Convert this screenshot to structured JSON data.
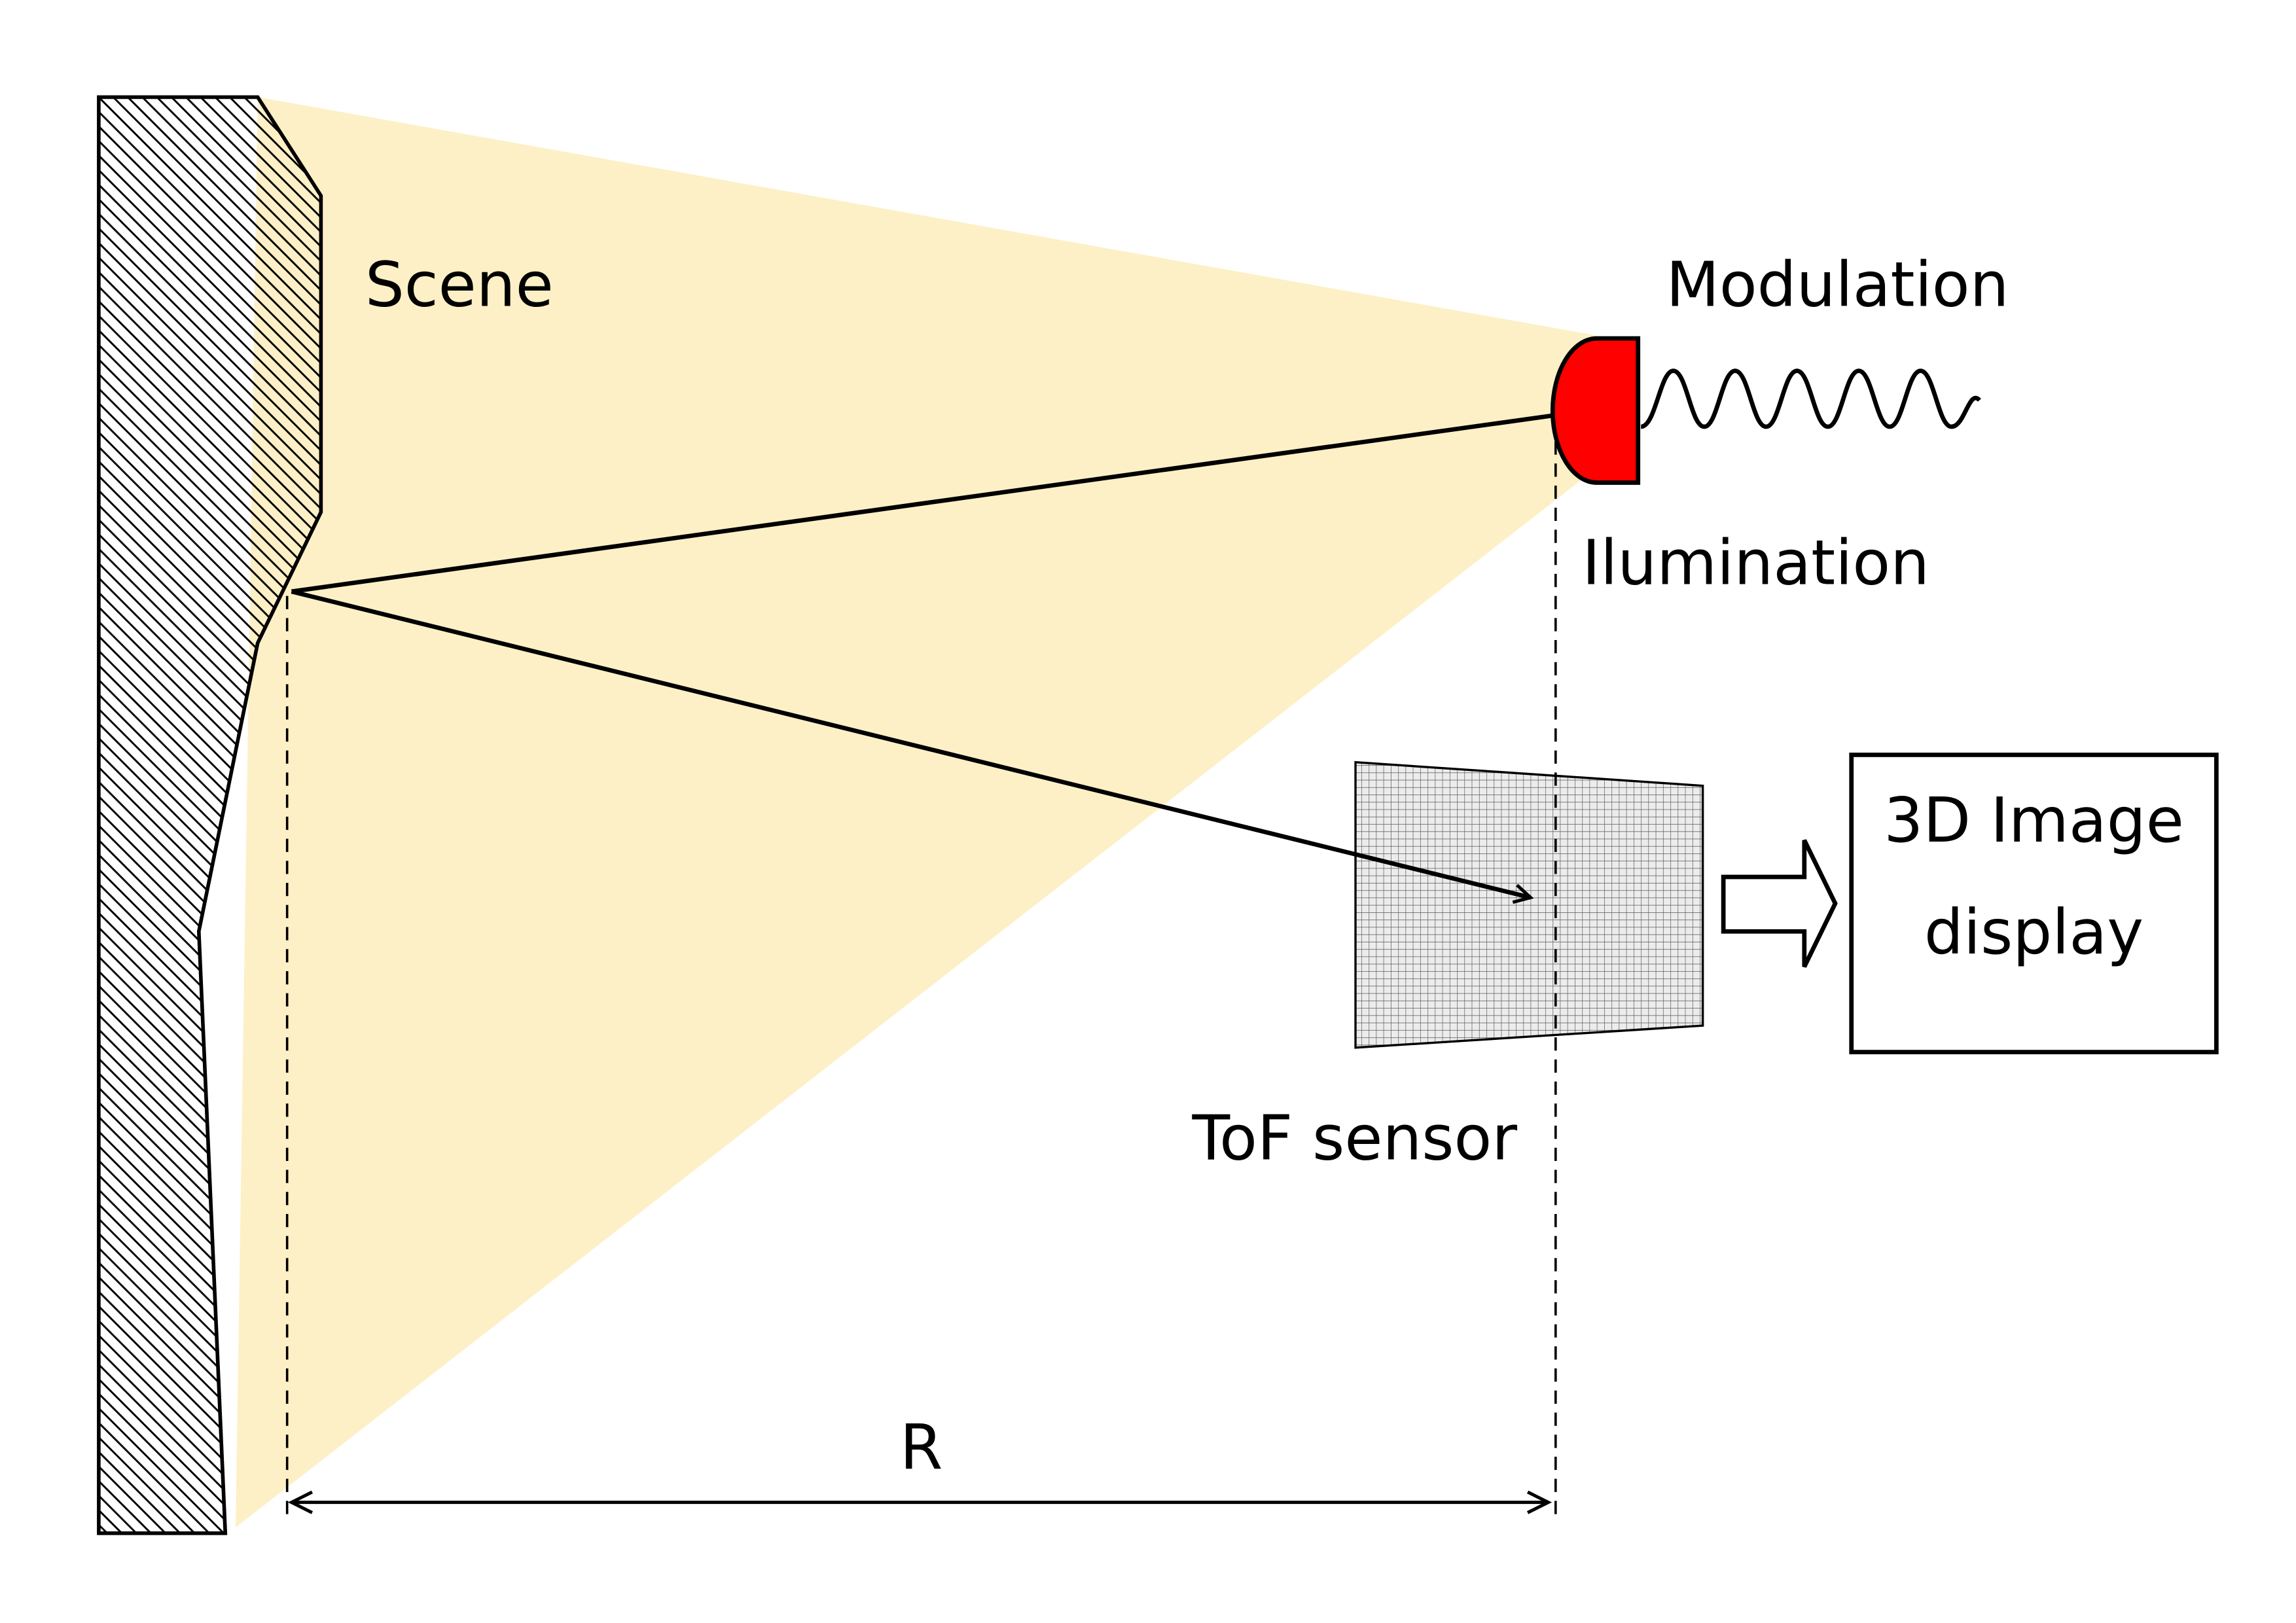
{
  "labels": {
    "scene": "Scene",
    "modulation": "Modulation",
    "illumination": "Ilumination",
    "tof_sensor": "ToF sensor",
    "display_line1": "3D Image",
    "display_line2": "display",
    "distance": "R"
  },
  "colors": {
    "light_cone": "#fdf0c6",
    "illumination_source": "#ff0000",
    "outline": "#000000",
    "sensor_fill": "#e6e6e6",
    "background": "#ffffff"
  },
  "icons": {
    "illumination_source": "red-led-icon",
    "modulation_wave": "sine-wave-icon",
    "processing_arrow": "hollow-arrow-icon"
  }
}
